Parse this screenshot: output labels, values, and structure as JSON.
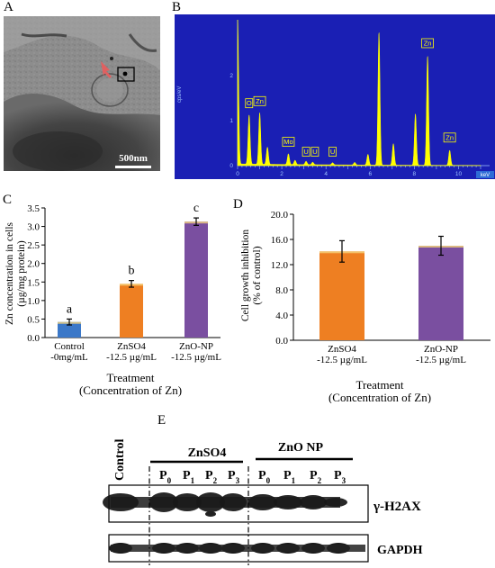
{
  "panels": {
    "a": {
      "label": "A",
      "scale_bar": "500nm"
    },
    "b": {
      "label": "B"
    },
    "c": {
      "label": "C"
    },
    "d": {
      "label": "D"
    },
    "e": {
      "label": "E"
    }
  },
  "chart_data": [
    {
      "type": "line",
      "panel": "B",
      "xlabel": "keV",
      "ylabel": "cps/eV",
      "xlim": [
        0,
        11
      ],
      "xticks": [
        "0",
        "2",
        "4",
        "6",
        "8",
        "10"
      ],
      "yticks": [
        "0",
        "1",
        "2"
      ],
      "peak_labels": [
        "O",
        "Zn",
        "Mo",
        "U",
        "U",
        "U",
        "Zn",
        "Zn"
      ],
      "peaks": [
        {
          "x": 0.0,
          "y": 3.4
        },
        {
          "x": 0.52,
          "y": 1.15
        },
        {
          "x": 1.0,
          "y": 1.2
        },
        {
          "x": 1.35,
          "y": 0.4
        },
        {
          "x": 2.3,
          "y": 0.25
        },
        {
          "x": 2.6,
          "y": 0.1
        },
        {
          "x": 3.1,
          "y": 0.08
        },
        {
          "x": 3.4,
          "y": 0.06
        },
        {
          "x": 4.3,
          "y": 0.05
        },
        {
          "x": 5.3,
          "y": 0.06
        },
        {
          "x": 5.9,
          "y": 0.25
        },
        {
          "x": 6.4,
          "y": 3.1
        },
        {
          "x": 7.05,
          "y": 0.5
        },
        {
          "x": 8.05,
          "y": 1.2
        },
        {
          "x": 8.6,
          "y": 2.55
        },
        {
          "x": 9.6,
          "y": 0.35
        }
      ]
    },
    {
      "type": "bar",
      "panel": "C",
      "categories": [
        "Control\n-0mg/mL",
        "ZnSO4\n-12.5 µg/mL",
        "ZnO-NP\n-12.5 µg/mL"
      ],
      "values": [
        0.42,
        1.45,
        3.13
      ],
      "errors": [
        0.08,
        0.09,
        0.1
      ],
      "significance": [
        "a",
        "b",
        "c"
      ],
      "colors": [
        "#3b78c8",
        "#ee7f22",
        "#7a4fa0"
      ],
      "xlabel": "Treatment\n(Concentration of Zn)",
      "ylabel": "Zn concentration in cells\n(µg/mg protein)",
      "ylim": [
        0,
        3.5
      ],
      "yticks": [
        "0.0",
        "0.5",
        "1.0",
        "1.5",
        "2.0",
        "2.5",
        "3.0",
        "3.5"
      ]
    },
    {
      "type": "bar",
      "panel": "D",
      "categories": [
        "ZnSO4\n-12.5 µg/mL",
        "ZnO-NP\n-12.5 µg/mL"
      ],
      "values": [
        14.1,
        15.0
      ],
      "errors": [
        1.7,
        1.5
      ],
      "colors": [
        "#ee7f22",
        "#7a4fa0"
      ],
      "xlabel": "Treatment\n(Concentration of Zn)",
      "ylabel": "Cell growth inhibition\n(% of control)",
      "ylim": [
        0,
        20
      ],
      "yticks": [
        "0.0",
        "4.0",
        "8.0",
        "12.0",
        "16.0",
        "20.0"
      ]
    }
  ],
  "blot": {
    "control_label": "Control",
    "group1": "ZnSO4",
    "group2": "ZnO NP",
    "lanes": [
      {
        "p": "P",
        "sub": "0"
      },
      {
        "p": "P",
        "sub": "1"
      },
      {
        "p": "P",
        "sub": "2"
      },
      {
        "p": "P",
        "sub": "3"
      },
      {
        "p": "P",
        "sub": "0"
      },
      {
        "p": "P",
        "sub": "1"
      },
      {
        "p": "P",
        "sub": "2"
      },
      {
        "p": "P",
        "sub": "3"
      }
    ],
    "band1": "γ-H2AX",
    "band2": "GAPDH"
  }
}
